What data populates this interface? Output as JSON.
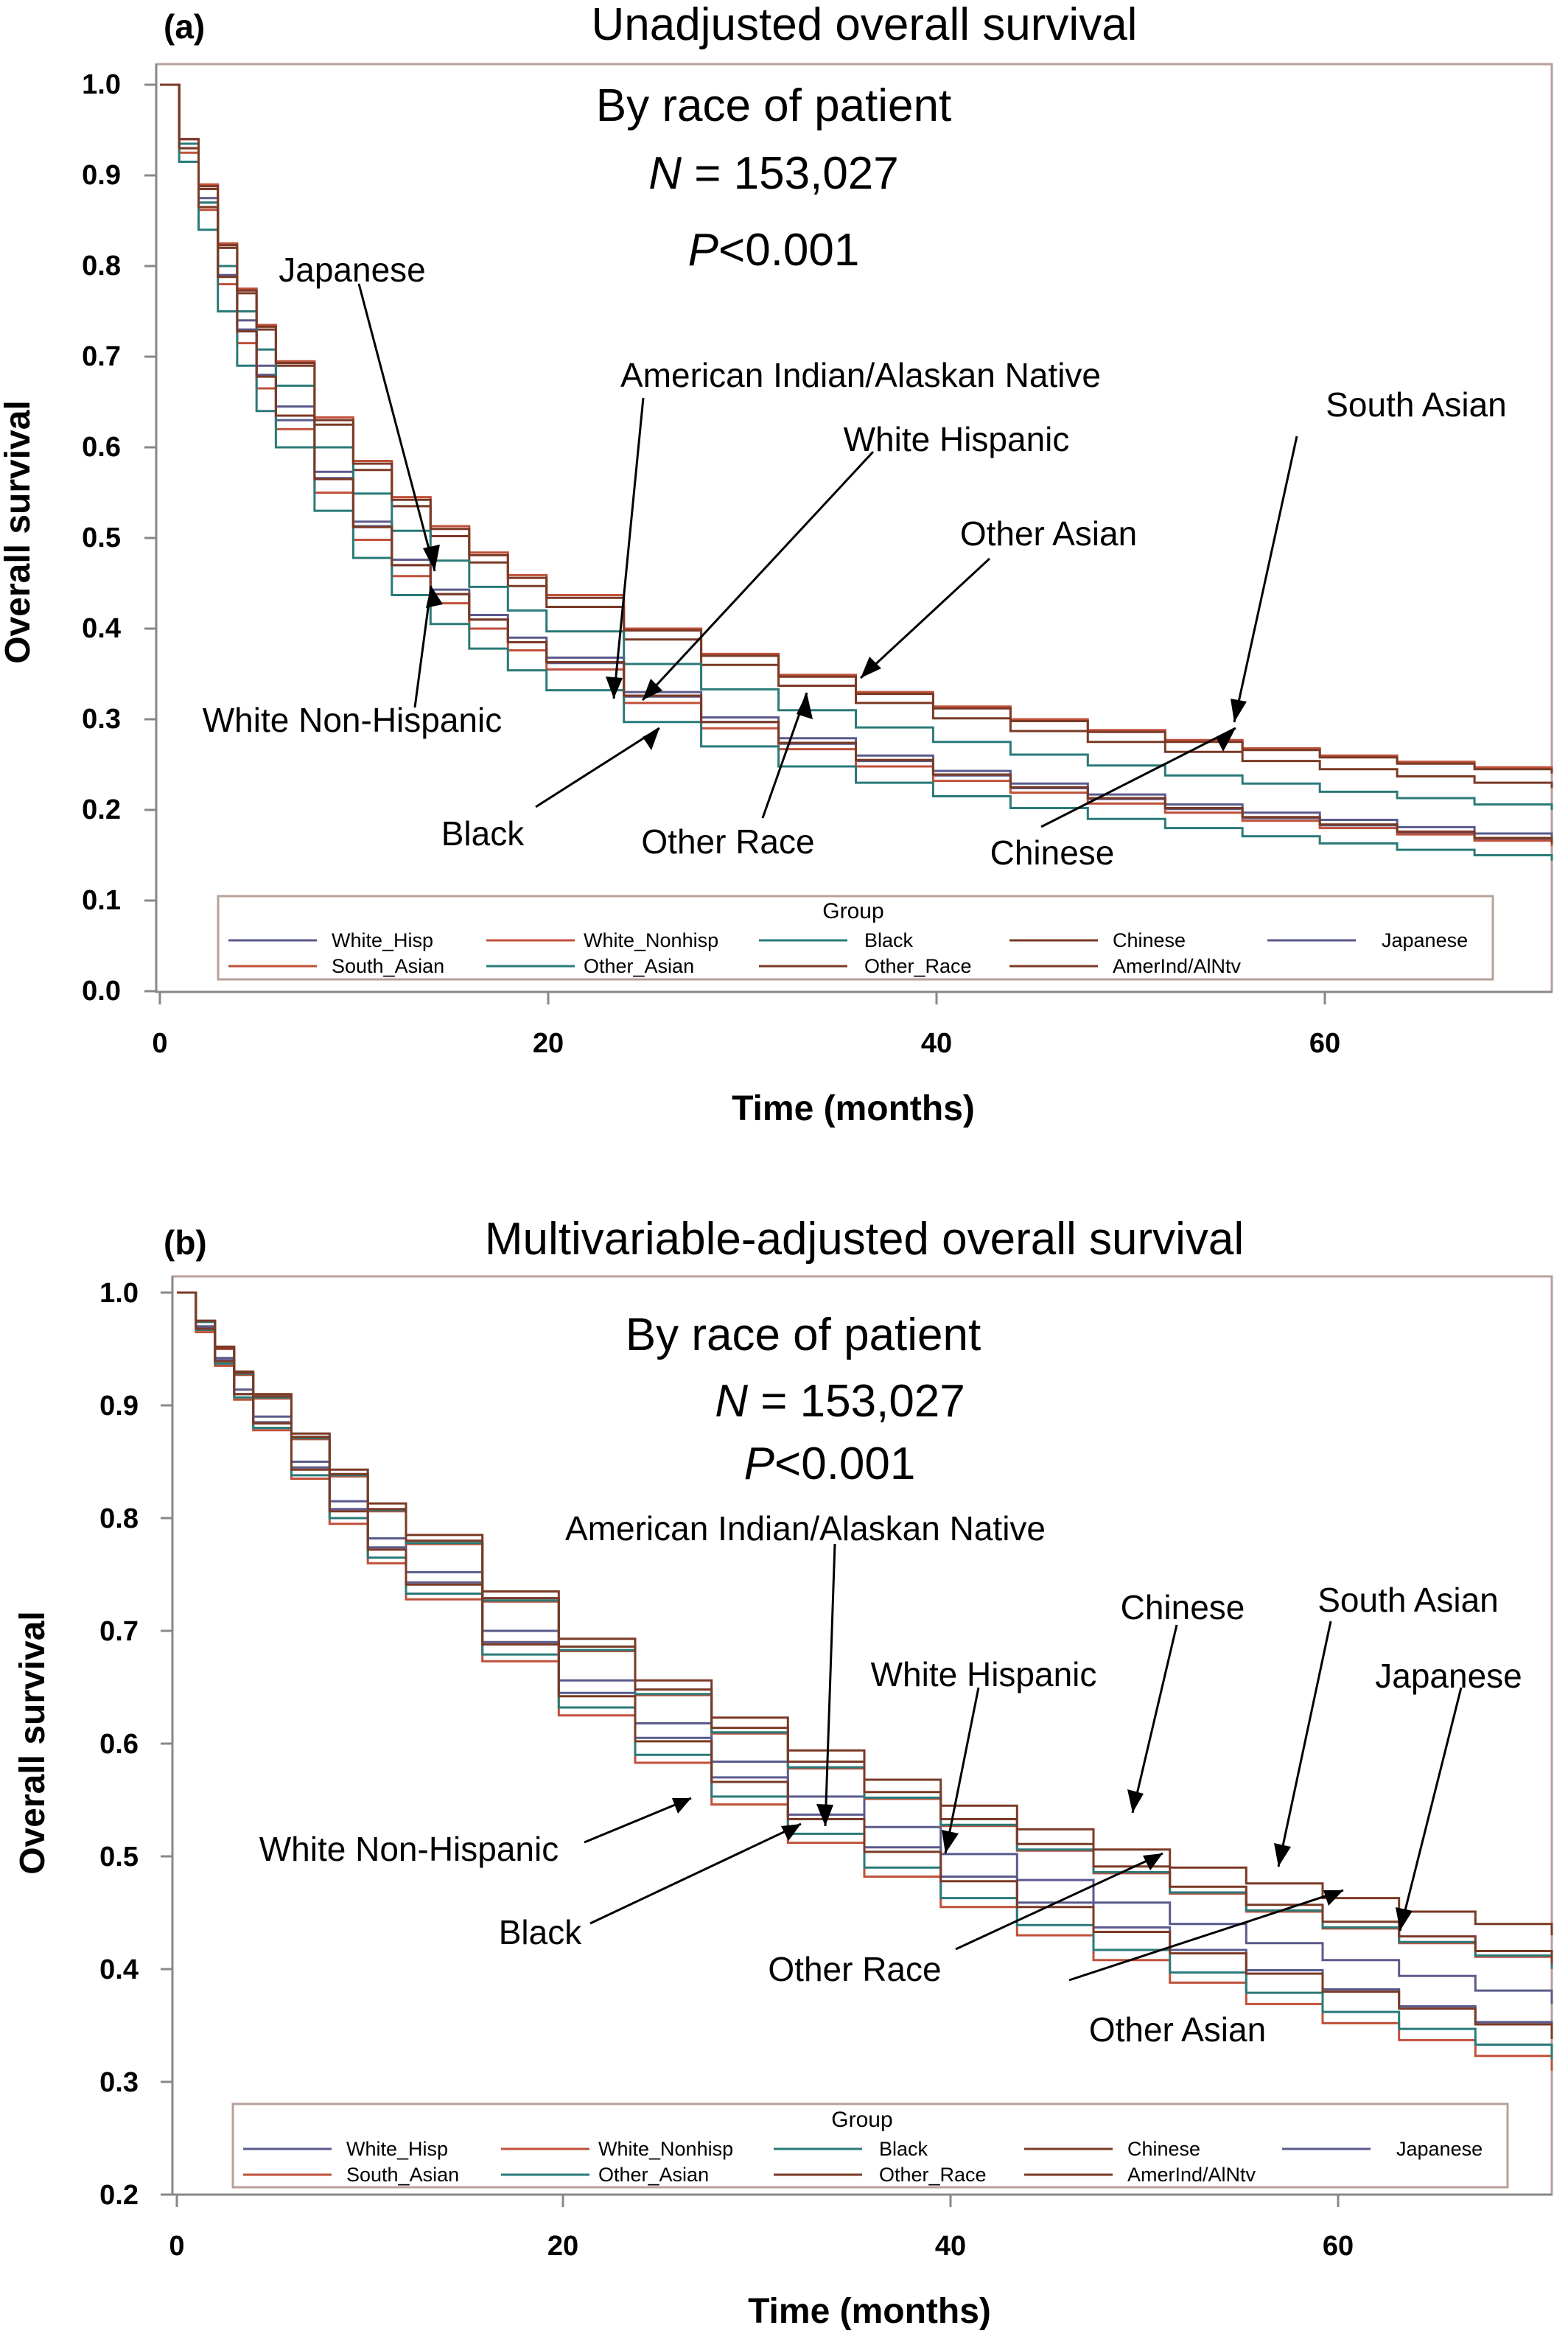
{
  "colors": {
    "White_Hisp": "#5a5a8c",
    "White_Nonhisp": "#c0503a",
    "Black": "#2a7a78",
    "Chinese": "#7a3a26",
    "Japanese": "#5a5a8c",
    "South_Asian": "#c0503a",
    "Other_Asian": "#2a7a78",
    "Other_Race": "#7a3a26",
    "AmerInd/AlNtv": "#7a3a26",
    "frame": "#b9a09a"
  },
  "chart_data": [
    {
      "type": "line",
      "step": true,
      "panel_letter": "(a)",
      "title": "Unadjusted overall survival",
      "annotations": [
        "By race of patient",
        "N",
        " = 153,027",
        "P",
        "<0.001"
      ],
      "xlabel": "Time (months)",
      "ylabel": "Overall survival",
      "xlim": [
        0,
        72
      ],
      "ylim": [
        0,
        1
      ],
      "x_ticks": [
        0,
        20,
        40,
        60
      ],
      "y_ticks": [
        0.0,
        0.1,
        0.2,
        0.3,
        0.4,
        0.5,
        0.6,
        0.7,
        0.8,
        0.9,
        1.0
      ],
      "y_tick_labels": [
        "0.0",
        "0.1",
        "0.2",
        "0.3",
        "0.4",
        "0.5",
        "0.6",
        "0.7",
        "0.8",
        "0.9",
        "1.0"
      ],
      "legend": {
        "title": "Group",
        "position": "bottom",
        "entries": [
          "White_Hisp",
          "White_Nonhisp",
          "Black",
          "Chinese",
          "Japanese",
          "South_Asian",
          "Other_Asian",
          "Other_Race",
          "AmerInd/AlNtv"
        ]
      },
      "callouts": [
        "Japanese",
        "American Indian/Alaskan Native",
        "White Hispanic",
        "South Asian",
        "Other Asian",
        "White Non-Hispanic",
        "Black",
        "Other Race",
        "Chinese"
      ],
      "x": [
        0,
        1,
        2,
        3,
        4,
        5,
        6,
        8,
        10,
        12,
        14,
        16,
        18,
        20,
        24,
        28,
        32,
        36,
        40,
        44,
        48,
        52,
        56,
        60,
        64,
        68,
        72
      ],
      "series": [
        {
          "name": "White_Hisp",
          "values": [
            1.0,
            0.93,
            0.87,
            0.79,
            0.73,
            0.68,
            0.63,
            0.566,
            0.513,
            0.47,
            0.438,
            0.41,
            0.385,
            0.362,
            0.325,
            0.297,
            0.273,
            0.254,
            0.238,
            0.224,
            0.212,
            0.201,
            0.191,
            0.183,
            0.175,
            0.168,
            0.162
          ]
        },
        {
          "name": "White_Nonhisp",
          "values": [
            1.0,
            0.925,
            0.862,
            0.78,
            0.715,
            0.665,
            0.62,
            0.55,
            0.498,
            0.458,
            0.428,
            0.4,
            0.376,
            0.355,
            0.318,
            0.29,
            0.267,
            0.248,
            0.232,
            0.219,
            0.207,
            0.197,
            0.188,
            0.18,
            0.173,
            0.166,
            0.16
          ]
        },
        {
          "name": "Black",
          "values": [
            1.0,
            0.915,
            0.84,
            0.75,
            0.69,
            0.64,
            0.6,
            0.53,
            0.478,
            0.437,
            0.405,
            0.378,
            0.354,
            0.332,
            0.297,
            0.27,
            0.248,
            0.23,
            0.215,
            0.202,
            0.19,
            0.18,
            0.171,
            0.163,
            0.156,
            0.15,
            0.144
          ]
        },
        {
          "name": "Chinese",
          "values": [
            1.0,
            0.94,
            0.885,
            0.82,
            0.77,
            0.73,
            0.69,
            0.625,
            0.575,
            0.535,
            0.502,
            0.473,
            0.447,
            0.424,
            0.388,
            0.36,
            0.337,
            0.318,
            0.301,
            0.287,
            0.275,
            0.264,
            0.254,
            0.245,
            0.237,
            0.23,
            0.224
          ]
        },
        {
          "name": "Japanese",
          "values": [
            1.0,
            0.935,
            0.875,
            0.8,
            0.74,
            0.69,
            0.645,
            0.573,
            0.518,
            0.476,
            0.443,
            0.415,
            0.39,
            0.368,
            0.33,
            0.302,
            0.279,
            0.26,
            0.243,
            0.229,
            0.217,
            0.206,
            0.197,
            0.189,
            0.181,
            0.174,
            0.168
          ]
        },
        {
          "name": "South_Asian",
          "values": [
            1.0,
            0.94,
            0.89,
            0.825,
            0.775,
            0.735,
            0.695,
            0.633,
            0.585,
            0.545,
            0.513,
            0.484,
            0.459,
            0.437,
            0.4,
            0.372,
            0.349,
            0.33,
            0.314,
            0.3,
            0.288,
            0.277,
            0.268,
            0.26,
            0.253,
            0.247,
            0.242
          ]
        },
        {
          "name": "Other_Asian",
          "values": [
            1.0,
            0.935,
            0.87,
            0.8,
            0.75,
            0.708,
            0.668,
            0.6,
            0.549,
            0.508,
            0.475,
            0.446,
            0.42,
            0.397,
            0.361,
            0.333,
            0.31,
            0.291,
            0.275,
            0.261,
            0.249,
            0.238,
            0.229,
            0.22,
            0.213,
            0.206,
            0.2
          ]
        },
        {
          "name": "Other_Race",
          "values": [
            1.0,
            0.94,
            0.888,
            0.823,
            0.773,
            0.733,
            0.693,
            0.63,
            0.582,
            0.542,
            0.51,
            0.481,
            0.456,
            0.434,
            0.398,
            0.37,
            0.347,
            0.328,
            0.312,
            0.298,
            0.286,
            0.275,
            0.266,
            0.258,
            0.251,
            0.245,
            0.24
          ]
        },
        {
          "name": "AmerInd/AlNtv",
          "values": [
            1.0,
            0.93,
            0.865,
            0.788,
            0.728,
            0.678,
            0.635,
            0.565,
            0.512,
            0.47,
            0.438,
            0.41,
            0.385,
            0.363,
            0.326,
            0.297,
            0.274,
            0.255,
            0.239,
            0.225,
            0.213,
            0.202,
            0.192,
            0.184,
            0.176,
            0.169,
            0.163
          ]
        }
      ]
    },
    {
      "type": "line",
      "step": true,
      "panel_letter": "(b)",
      "title": "Multivariable-adjusted overall survival",
      "annotations": [
        "By race of patient",
        "N",
        " = 153,027",
        "P",
        "<0.001"
      ],
      "xlabel": "Time (months)",
      "ylabel": "Overall survival",
      "xlim": [
        0,
        72
      ],
      "ylim": [
        0.2,
        1.0
      ],
      "x_ticks": [
        0,
        20,
        40,
        60
      ],
      "y_ticks": [
        0.2,
        0.3,
        0.4,
        0.5,
        0.6,
        0.7,
        0.8,
        0.9,
        1.0
      ],
      "y_tick_labels": [
        "0.2",
        "0.3",
        "0.4",
        "0.5",
        "0.6",
        "0.7",
        "0.8",
        "0.9",
        "1.0"
      ],
      "legend": {
        "title": "Group",
        "position": "bottom",
        "entries": [
          "White_Hisp",
          "White_Nonhisp",
          "Black",
          "Chinese",
          "Japanese",
          "South_Asian",
          "Other_Asian",
          "Other_Race",
          "AmerInd/AlNtv"
        ]
      },
      "callouts": [
        "American Indian/Alaskan Native",
        "Chinese",
        "South Asian",
        "White Hispanic",
        "Japanese",
        "White Non-Hispanic",
        "Black",
        "Other Race",
        "Other Asian"
      ],
      "x": [
        0,
        1,
        2,
        3,
        4,
        6,
        8,
        10,
        12,
        16,
        20,
        24,
        28,
        32,
        36,
        40,
        44,
        48,
        52,
        56,
        60,
        64,
        68,
        72
      ],
      "series": [
        {
          "name": "White_Hisp",
          "values": [
            1.0,
            0.97,
            0.94,
            0.91,
            0.885,
            0.845,
            0.808,
            0.774,
            0.743,
            0.69,
            0.645,
            0.605,
            0.57,
            0.537,
            0.508,
            0.482,
            0.459,
            0.437,
            0.417,
            0.399,
            0.382,
            0.367,
            0.353,
            0.34
          ]
        },
        {
          "name": "White_Nonhisp",
          "values": [
            1.0,
            0.965,
            0.935,
            0.905,
            0.878,
            0.835,
            0.795,
            0.76,
            0.728,
            0.673,
            0.625,
            0.583,
            0.546,
            0.512,
            0.482,
            0.455,
            0.43,
            0.408,
            0.388,
            0.369,
            0.352,
            0.337,
            0.323,
            0.31
          ]
        },
        {
          "name": "Black",
          "values": [
            1.0,
            0.967,
            0.937,
            0.907,
            0.88,
            0.838,
            0.8,
            0.765,
            0.733,
            0.679,
            0.632,
            0.59,
            0.553,
            0.52,
            0.49,
            0.463,
            0.439,
            0.417,
            0.397,
            0.379,
            0.362,
            0.347,
            0.333,
            0.32
          ]
        },
        {
          "name": "Chinese",
          "values": [
            1.0,
            0.975,
            0.952,
            0.93,
            0.91,
            0.875,
            0.843,
            0.813,
            0.785,
            0.735,
            0.693,
            0.656,
            0.623,
            0.594,
            0.568,
            0.545,
            0.524,
            0.506,
            0.49,
            0.476,
            0.463,
            0.451,
            0.44,
            0.43
          ]
        },
        {
          "name": "Japanese",
          "values": [
            1.0,
            0.97,
            0.942,
            0.914,
            0.89,
            0.85,
            0.815,
            0.782,
            0.752,
            0.7,
            0.656,
            0.618,
            0.584,
            0.553,
            0.526,
            0.502,
            0.479,
            0.459,
            0.44,
            0.423,
            0.408,
            0.394,
            0.381,
            0.369
          ]
        },
        {
          "name": "South_Asian",
          "values": [
            1.0,
            0.974,
            0.95,
            0.927,
            0.906,
            0.87,
            0.837,
            0.806,
            0.777,
            0.726,
            0.682,
            0.643,
            0.609,
            0.578,
            0.551,
            0.527,
            0.505,
            0.485,
            0.467,
            0.451,
            0.436,
            0.423,
            0.411,
            0.4
          ]
        },
        {
          "name": "Other_Asian",
          "values": [
            1.0,
            0.974,
            0.951,
            0.928,
            0.907,
            0.871,
            0.838,
            0.807,
            0.778,
            0.727,
            0.683,
            0.644,
            0.61,
            0.579,
            0.552,
            0.528,
            0.506,
            0.486,
            0.468,
            0.452,
            0.437,
            0.424,
            0.412,
            0.401
          ]
        },
        {
          "name": "Other_Race",
          "values": [
            1.0,
            0.975,
            0.951,
            0.929,
            0.908,
            0.872,
            0.839,
            0.808,
            0.78,
            0.729,
            0.686,
            0.648,
            0.614,
            0.584,
            0.557,
            0.533,
            0.511,
            0.491,
            0.473,
            0.457,
            0.442,
            0.429,
            0.416,
            0.405
          ]
        },
        {
          "name": "AmerInd/AlNtv",
          "values": [
            1.0,
            0.968,
            0.939,
            0.91,
            0.884,
            0.843,
            0.806,
            0.772,
            0.741,
            0.688,
            0.642,
            0.602,
            0.566,
            0.533,
            0.504,
            0.478,
            0.455,
            0.433,
            0.414,
            0.396,
            0.38,
            0.365,
            0.351,
            0.338
          ]
        }
      ]
    }
  ]
}
